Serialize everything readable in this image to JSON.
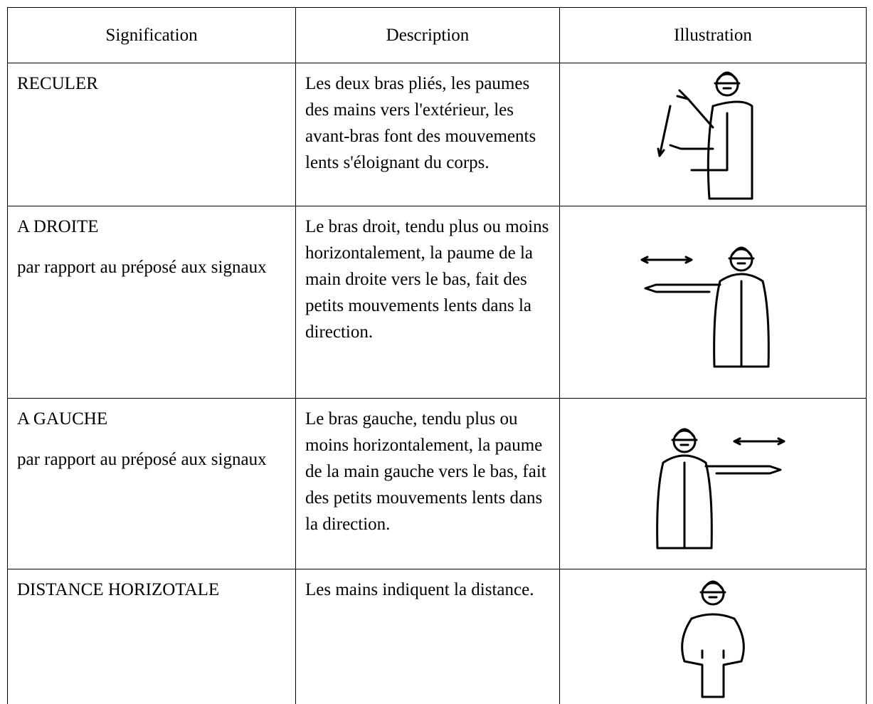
{
  "table": {
    "header": [
      "Signification",
      "Description",
      "Illustration"
    ],
    "rows": [
      {
        "signification": "RECULER",
        "description": "Les deux bras pliés, les paumes des mains vers l'extérieur, les avant-bras font des mouvements lents s'éloignant du corps."
      },
      {
        "signification": "A DROITE",
        "note": "par rapport au préposé aux signaux",
        "description": "Le bras droit, tendu plus ou moins horizontalement, la paume de la main droite vers le bas, fait des petits mouvements lents dans la direction."
      },
      {
        "signification": "A GAUCHE",
        "note": "par rapport au préposé aux signaux",
        "description": "Le bras gauche, tendu plus ou moins horizontalement, la paume de la main gauche vers le bas, fait des petits mouvements lents dans la direction."
      },
      {
        "signification": "DISTANCE HORIZOTALE",
        "description": "Les mains indiquent la distance."
      }
    ]
  }
}
